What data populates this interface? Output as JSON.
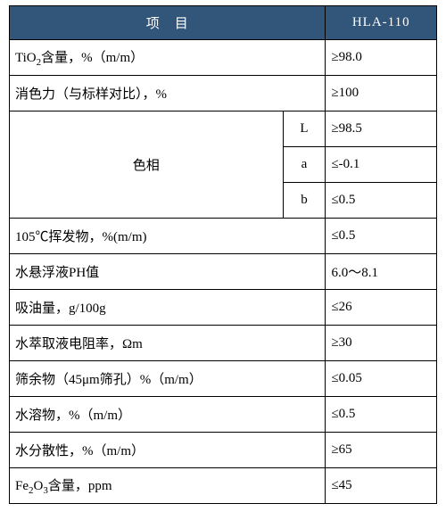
{
  "table": {
    "header": {
      "item": "项　目",
      "value": "HLA-110"
    },
    "colors": {
      "header_bg": "#32557a",
      "header_fg": "#ffffff",
      "border": "#000000",
      "body_fg": "#000000",
      "background": "#ffffff"
    },
    "rows": [
      {
        "label_html": "TiO<sub>2</sub>含量，%（m/m）",
        "value": "≥98.0"
      },
      {
        "label_html": "消色力（与标样对比），%",
        "value": "≥100"
      },
      {
        "group_label": "色相",
        "sub": "L",
        "value": "≥98.5"
      },
      {
        "sub": "a",
        "value": "≤-0.1"
      },
      {
        "sub": "b",
        "value": "≤0.5"
      },
      {
        "label_html": "105℃挥发物，%(m/m)",
        "value": "≤0.5"
      },
      {
        "label_html": "水悬浮液PH值",
        "value": "6.0～8.1"
      },
      {
        "label_html": "吸油量，g/100g",
        "value": "≤26"
      },
      {
        "label_html": "水萃取液电阻率，Ωm",
        "value": "≥30"
      },
      {
        "label_html": "筛余物（45μm筛孔）%（m/m）",
        "value": "≤0.05"
      },
      {
        "label_html": "水溶物，%（m/m）",
        "value": "≤0.5"
      },
      {
        "label_html": "水分散性，%（m/m）",
        "value": "≥65"
      },
      {
        "label_html": "Fe<sub>2</sub>O<sub>3</sub>含量，ppm",
        "value": "≤45"
      }
    ]
  }
}
